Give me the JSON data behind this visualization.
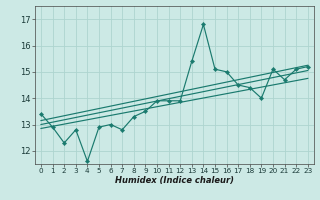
{
  "title": "",
  "xlabel": "Humidex (Indice chaleur)",
  "bg_color": "#cce9e5",
  "line_color": "#1a7a6e",
  "grid_color": "#aed4cf",
  "xlim": [
    -0.5,
    23.5
  ],
  "ylim": [
    11.5,
    17.5
  ],
  "yticks": [
    12,
    13,
    14,
    15,
    16,
    17
  ],
  "xticks": [
    0,
    1,
    2,
    3,
    4,
    5,
    6,
    7,
    8,
    9,
    10,
    11,
    12,
    13,
    14,
    15,
    16,
    17,
    18,
    19,
    20,
    21,
    22,
    23
  ],
  "data_x": [
    0,
    1,
    2,
    3,
    4,
    5,
    6,
    7,
    8,
    9,
    10,
    11,
    12,
    13,
    14,
    15,
    16,
    17,
    18,
    19,
    20,
    21,
    22,
    23
  ],
  "data_y": [
    13.4,
    12.9,
    12.3,
    12.8,
    11.6,
    12.9,
    13.0,
    12.8,
    13.3,
    13.5,
    13.9,
    13.9,
    13.9,
    15.4,
    16.8,
    15.1,
    15.0,
    14.5,
    14.4,
    14.0,
    15.1,
    14.7,
    15.1,
    15.2
  ],
  "reg_lines": [
    {
      "x": [
        0,
        23
      ],
      "y": [
        12.85,
        14.75
      ]
    },
    {
      "x": [
        0,
        23
      ],
      "y": [
        13.0,
        15.05
      ]
    },
    {
      "x": [
        0,
        23
      ],
      "y": [
        13.15,
        15.25
      ]
    }
  ],
  "xlabel_fontsize": 6.0,
  "ytick_fontsize": 6.0,
  "xtick_fontsize": 5.2
}
